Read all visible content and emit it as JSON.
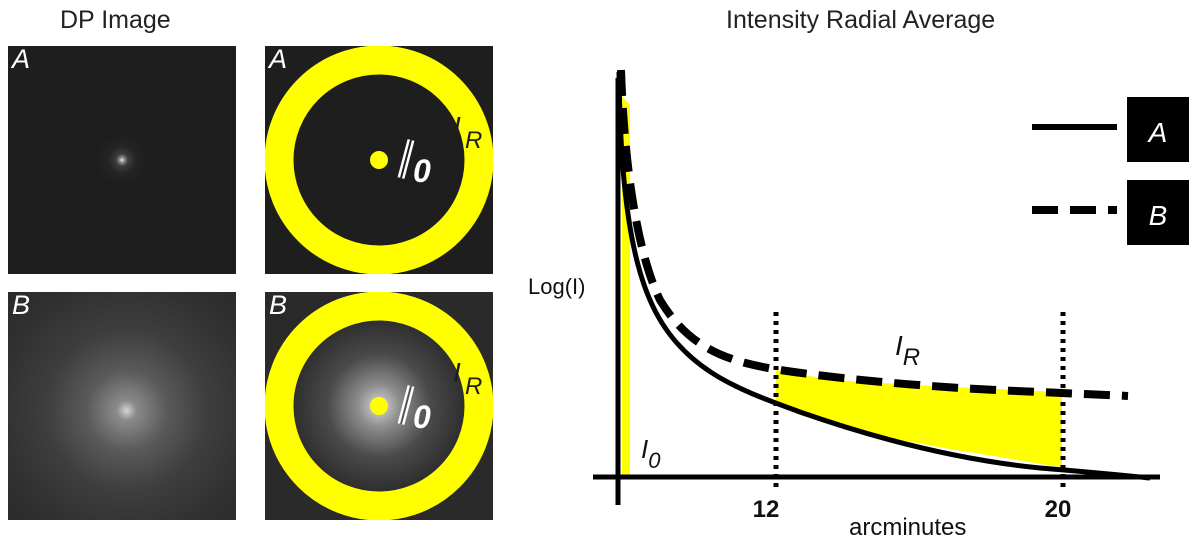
{
  "left_title": "DP Image",
  "right_title": "Intensity Radial Average",
  "panels": [
    {
      "label": "A",
      "type": "image",
      "spread": "narrow"
    },
    {
      "label": "A",
      "type": "annotated",
      "inner_label": "I0",
      "ring_label": "IR"
    },
    {
      "label": "B",
      "type": "image",
      "spread": "wide"
    },
    {
      "label": "B",
      "type": "annotated",
      "inner_label": "I0",
      "ring_label": "IR"
    }
  ],
  "plot": {
    "ylabel": "Log(I)",
    "xlabel": "arcminutes",
    "ticks": [
      "12",
      "20"
    ],
    "region_inner_label": "I0",
    "region_ring_label": "IR",
    "legend": [
      {
        "label": "A",
        "style": "solid"
      },
      {
        "label": "B",
        "style": "dashed"
      }
    ]
  },
  "colors": {
    "highlight": "#ffff00",
    "panel_bg": "#1e1e1e",
    "curve": "#000000"
  }
}
